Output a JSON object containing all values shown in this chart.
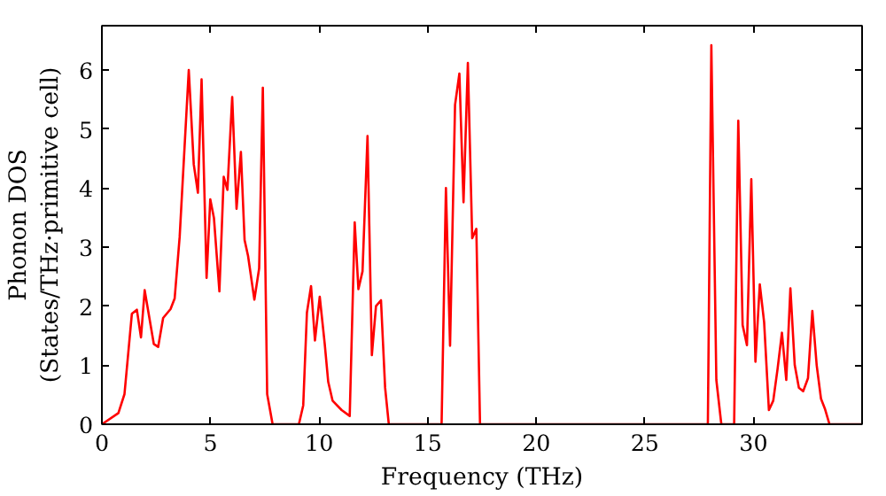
{
  "chart_data": {
    "type": "line",
    "xlabel": "Frequency (THz)",
    "ylabel": "Phonon DOS\n(States/THz·primitive cell)",
    "xlim": [
      0,
      35
    ],
    "ylim": [
      0,
      6.75
    ],
    "xticks": [
      0,
      5,
      10,
      15,
      20,
      25,
      30
    ],
    "yticks": [
      0,
      1,
      2,
      3,
      4,
      5,
      6
    ],
    "grid": false,
    "series": [
      {
        "color": "#ff0000",
        "x": [
          0,
          0.76,
          1.04,
          1.38,
          1.61,
          1.8,
          1.97,
          2.39,
          2.59,
          2.82,
          3.16,
          3.35,
          3.58,
          4.0,
          4.23,
          4.42,
          4.59,
          4.82,
          4.99,
          5.16,
          5.41,
          5.61,
          5.78,
          6.0,
          6.2,
          6.4,
          6.57,
          6.73,
          7.02,
          7.24,
          7.41,
          7.61,
          7.86,
          9.07,
          9.27,
          9.44,
          9.63,
          9.81,
          10.03,
          10.26,
          10.42,
          10.62,
          11.04,
          11.41,
          11.64,
          11.81,
          12.0,
          12.23,
          12.43,
          12.62,
          12.85,
          13.04,
          13.21,
          15.64,
          15.84,
          16.03,
          16.26,
          16.46,
          16.65,
          16.85,
          17.05,
          17.24,
          17.41,
          27.9,
          28.06,
          28.29,
          28.52,
          29.11,
          29.3,
          29.5,
          29.7,
          29.9,
          30.09,
          30.29,
          30.49,
          30.71,
          30.91,
          31.11,
          31.31,
          31.51,
          31.7,
          31.9,
          32.09,
          32.29,
          32.51,
          32.71,
          32.91,
          33.11,
          33.3,
          33.5,
          35
        ],
        "values": [
          0,
          0.19,
          0.51,
          1.87,
          1.94,
          1.47,
          2.27,
          1.36,
          1.31,
          1.8,
          1.95,
          2.13,
          3.17,
          6.0,
          4.4,
          3.92,
          5.84,
          2.48,
          3.81,
          3.49,
          2.25,
          4.19,
          3.97,
          5.54,
          3.65,
          4.61,
          3.12,
          2.85,
          2.11,
          2.64,
          5.7,
          0.51,
          0,
          0,
          0.32,
          1.89,
          2.34,
          1.42,
          2.16,
          1.36,
          0.72,
          0.4,
          0.24,
          0.14,
          3.42,
          2.29,
          2.59,
          4.88,
          1.17,
          2.0,
          2.1,
          0.62,
          0,
          0,
          4.0,
          1.33,
          5.41,
          5.94,
          3.76,
          6.12,
          3.15,
          3.31,
          0,
          0,
          6.42,
          0.75,
          0,
          0,
          5.14,
          1.68,
          1.34,
          4.15,
          1.06,
          2.37,
          1.73,
          0.24,
          0.4,
          0.94,
          1.55,
          0.75,
          2.3,
          1.0,
          0.62,
          0.56,
          0.78,
          1.92,
          1.0,
          0.43,
          0.25,
          0,
          0
        ]
      }
    ]
  }
}
